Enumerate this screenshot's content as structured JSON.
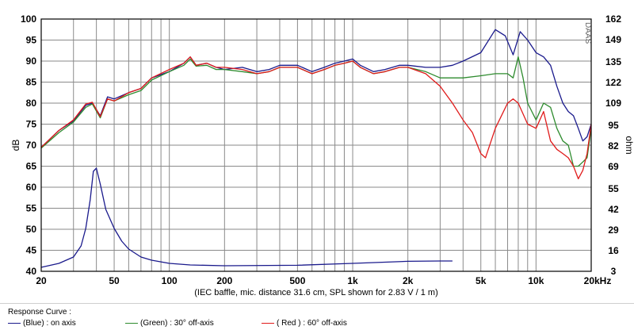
{
  "chart_data": {
    "type": "line",
    "x_scale": "log",
    "xlim": [
      20,
      20000
    ],
    "ylim_left": [
      40,
      100
    ],
    "ylim_right": [
      3,
      162
    ],
    "ylabel_left": "dB",
    "ylabel_right": "ohm",
    "xlabel": "(IEC baffle, mic. distance 31.6 cm, SPL shown for 2.83 V / 1 m)",
    "watermark": "DAAS",
    "x_ticks": [
      {
        "v": 20,
        "label": "20"
      },
      {
        "v": 50,
        "label": "50"
      },
      {
        "v": 100,
        "label": "100"
      },
      {
        "v": 200,
        "label": "200"
      },
      {
        "v": 500,
        "label": "500"
      },
      {
        "v": 1000,
        "label": "1k"
      },
      {
        "v": 2000,
        "label": "2k"
      },
      {
        "v": 5000,
        "label": "5k"
      },
      {
        "v": 10000,
        "label": "10k"
      },
      {
        "v": 20000,
        "label": "20kHz"
      }
    ],
    "y_ticks_left": [
      "40",
      "45",
      "50",
      "55",
      "60",
      "65",
      "70",
      "75",
      "80",
      "85",
      "90",
      "95",
      "100"
    ],
    "y_ticks_right": [
      "3",
      "16",
      "29",
      "42",
      "55",
      "69",
      "82",
      "95",
      "109",
      "122",
      "135",
      "149",
      "162"
    ],
    "grid": true,
    "series": [
      {
        "name": "on axis",
        "color": "#1a1a8c",
        "points": [
          [
            20,
            69.5
          ],
          [
            25,
            73.5
          ],
          [
            30,
            75.8
          ],
          [
            35,
            79.5
          ],
          [
            38,
            80
          ],
          [
            42,
            77
          ],
          [
            46,
            81.5
          ],
          [
            50,
            81
          ],
          [
            60,
            82.5
          ],
          [
            70,
            83.5
          ],
          [
            80,
            86
          ],
          [
            100,
            87.5
          ],
          [
            120,
            89.5
          ],
          [
            130,
            91
          ],
          [
            140,
            89
          ],
          [
            160,
            89.5
          ],
          [
            180,
            88.5
          ],
          [
            200,
            88
          ],
          [
            250,
            88.5
          ],
          [
            300,
            87.5
          ],
          [
            350,
            88
          ],
          [
            400,
            89
          ],
          [
            500,
            89
          ],
          [
            600,
            87.5
          ],
          [
            700,
            88.5
          ],
          [
            800,
            89.5
          ],
          [
            900,
            90
          ],
          [
            1000,
            90.5
          ],
          [
            1100,
            89
          ],
          [
            1300,
            87.5
          ],
          [
            1500,
            88
          ],
          [
            1800,
            89
          ],
          [
            2000,
            89
          ],
          [
            2500,
            88.5
          ],
          [
            3000,
            88.5
          ],
          [
            3500,
            89
          ],
          [
            4000,
            90
          ],
          [
            5000,
            92
          ],
          [
            6000,
            97.5
          ],
          [
            6800,
            96
          ],
          [
            7500,
            91.5
          ],
          [
            8200,
            97
          ],
          [
            9000,
            95
          ],
          [
            10000,
            92
          ],
          [
            11000,
            91
          ],
          [
            12000,
            89
          ],
          [
            13000,
            84
          ],
          [
            14000,
            80
          ],
          [
            15000,
            78
          ],
          [
            16000,
            77
          ],
          [
            17000,
            74
          ],
          [
            18000,
            71
          ],
          [
            19000,
            72
          ],
          [
            20000,
            75
          ]
        ]
      },
      {
        "name": "30° off-axis",
        "color": "#2e8b2e",
        "points": [
          [
            20,
            69.3
          ],
          [
            25,
            73
          ],
          [
            30,
            75.5
          ],
          [
            35,
            79
          ],
          [
            38,
            79.8
          ],
          [
            42,
            76.5
          ],
          [
            46,
            81
          ],
          [
            50,
            80.5
          ],
          [
            60,
            82
          ],
          [
            70,
            83
          ],
          [
            80,
            85.5
          ],
          [
            100,
            87.5
          ],
          [
            120,
            89
          ],
          [
            130,
            90.5
          ],
          [
            140,
            88.8
          ],
          [
            160,
            89
          ],
          [
            180,
            88
          ],
          [
            200,
            88
          ],
          [
            250,
            87.5
          ],
          [
            300,
            87
          ],
          [
            350,
            87.5
          ],
          [
            400,
            88.5
          ],
          [
            500,
            88.5
          ],
          [
            600,
            87
          ],
          [
            700,
            88
          ],
          [
            800,
            89
          ],
          [
            900,
            89.5
          ],
          [
            1000,
            90
          ],
          [
            1100,
            88.5
          ],
          [
            1300,
            87
          ],
          [
            1500,
            87.5
          ],
          [
            1800,
            88.5
          ],
          [
            2000,
            88.5
          ],
          [
            2500,
            87.5
          ],
          [
            3000,
            86
          ],
          [
            3500,
            86
          ],
          [
            4000,
            86
          ],
          [
            5000,
            86.5
          ],
          [
            6000,
            87
          ],
          [
            7000,
            87
          ],
          [
            7500,
            86
          ],
          [
            8000,
            91
          ],
          [
            8500,
            86
          ],
          [
            9000,
            80
          ],
          [
            10000,
            76
          ],
          [
            11000,
            80
          ],
          [
            12000,
            79
          ],
          [
            13000,
            74
          ],
          [
            14000,
            71
          ],
          [
            15000,
            70
          ],
          [
            16000,
            65
          ],
          [
            17000,
            65
          ],
          [
            18000,
            66
          ],
          [
            19000,
            67
          ],
          [
            20000,
            74
          ]
        ]
      },
      {
        "name": "60° off-axis",
        "color": "#e01b1b",
        "points": [
          [
            20,
            69.5
          ],
          [
            25,
            73.5
          ],
          [
            30,
            76
          ],
          [
            35,
            79.8
          ],
          [
            38,
            80.2
          ],
          [
            42,
            76.8
          ],
          [
            46,
            81
          ],
          [
            50,
            80.5
          ],
          [
            60,
            82.5
          ],
          [
            70,
            83.5
          ],
          [
            80,
            86
          ],
          [
            100,
            88
          ],
          [
            120,
            89.5
          ],
          [
            130,
            91
          ],
          [
            140,
            89
          ],
          [
            160,
            89.5
          ],
          [
            180,
            88.5
          ],
          [
            200,
            88.5
          ],
          [
            250,
            88
          ],
          [
            300,
            87
          ],
          [
            350,
            87.5
          ],
          [
            400,
            88.5
          ],
          [
            500,
            88.5
          ],
          [
            600,
            87
          ],
          [
            700,
            88
          ],
          [
            800,
            89
          ],
          [
            900,
            89.5
          ],
          [
            1000,
            90
          ],
          [
            1100,
            88.5
          ],
          [
            1300,
            87
          ],
          [
            1500,
            87.5
          ],
          [
            1800,
            88.5
          ],
          [
            2000,
            88.5
          ],
          [
            2500,
            87
          ],
          [
            3000,
            84
          ],
          [
            3500,
            80
          ],
          [
            4000,
            76
          ],
          [
            4500,
            73
          ],
          [
            5000,
            68
          ],
          [
            5300,
            67
          ],
          [
            6000,
            74
          ],
          [
            7000,
            80
          ],
          [
            7500,
            81
          ],
          [
            8000,
            80
          ],
          [
            9000,
            75
          ],
          [
            10000,
            74
          ],
          [
            11000,
            78
          ],
          [
            12000,
            71
          ],
          [
            13000,
            69
          ],
          [
            14000,
            68
          ],
          [
            15000,
            67
          ],
          [
            16000,
            65
          ],
          [
            17000,
            62
          ],
          [
            18000,
            64
          ],
          [
            19000,
            68
          ],
          [
            20000,
            75
          ]
        ]
      },
      {
        "name": "impedance",
        "color": "#1a1a8c",
        "axis": "right",
        "points": [
          [
            20,
            5.5
          ],
          [
            25,
            8
          ],
          [
            30,
            12
          ],
          [
            33,
            19
          ],
          [
            35,
            30
          ],
          [
            37,
            48
          ],
          [
            38.5,
            66
          ],
          [
            40,
            68
          ],
          [
            42,
            58
          ],
          [
            45,
            42
          ],
          [
            50,
            30
          ],
          [
            55,
            22
          ],
          [
            60,
            17
          ],
          [
            70,
            12
          ],
          [
            80,
            10
          ],
          [
            100,
            8
          ],
          [
            130,
            7
          ],
          [
            200,
            6.5
          ],
          [
            500,
            6.8
          ],
          [
            1000,
            8
          ],
          [
            2000,
            9.3
          ],
          [
            3000,
            9.5
          ],
          [
            3500,
            9.5
          ]
        ]
      }
    ]
  },
  "legend": {
    "title": "Response Curve :",
    "items": [
      {
        "color": "#1a1a8c",
        "label": "(Blue)  : on axis"
      },
      {
        "color": "#2e8b2e",
        "label": "(Green) : 30° off-axis"
      },
      {
        "color": "#e01b1b",
        "label": "( Red ) : 60° off-axis"
      }
    ]
  }
}
